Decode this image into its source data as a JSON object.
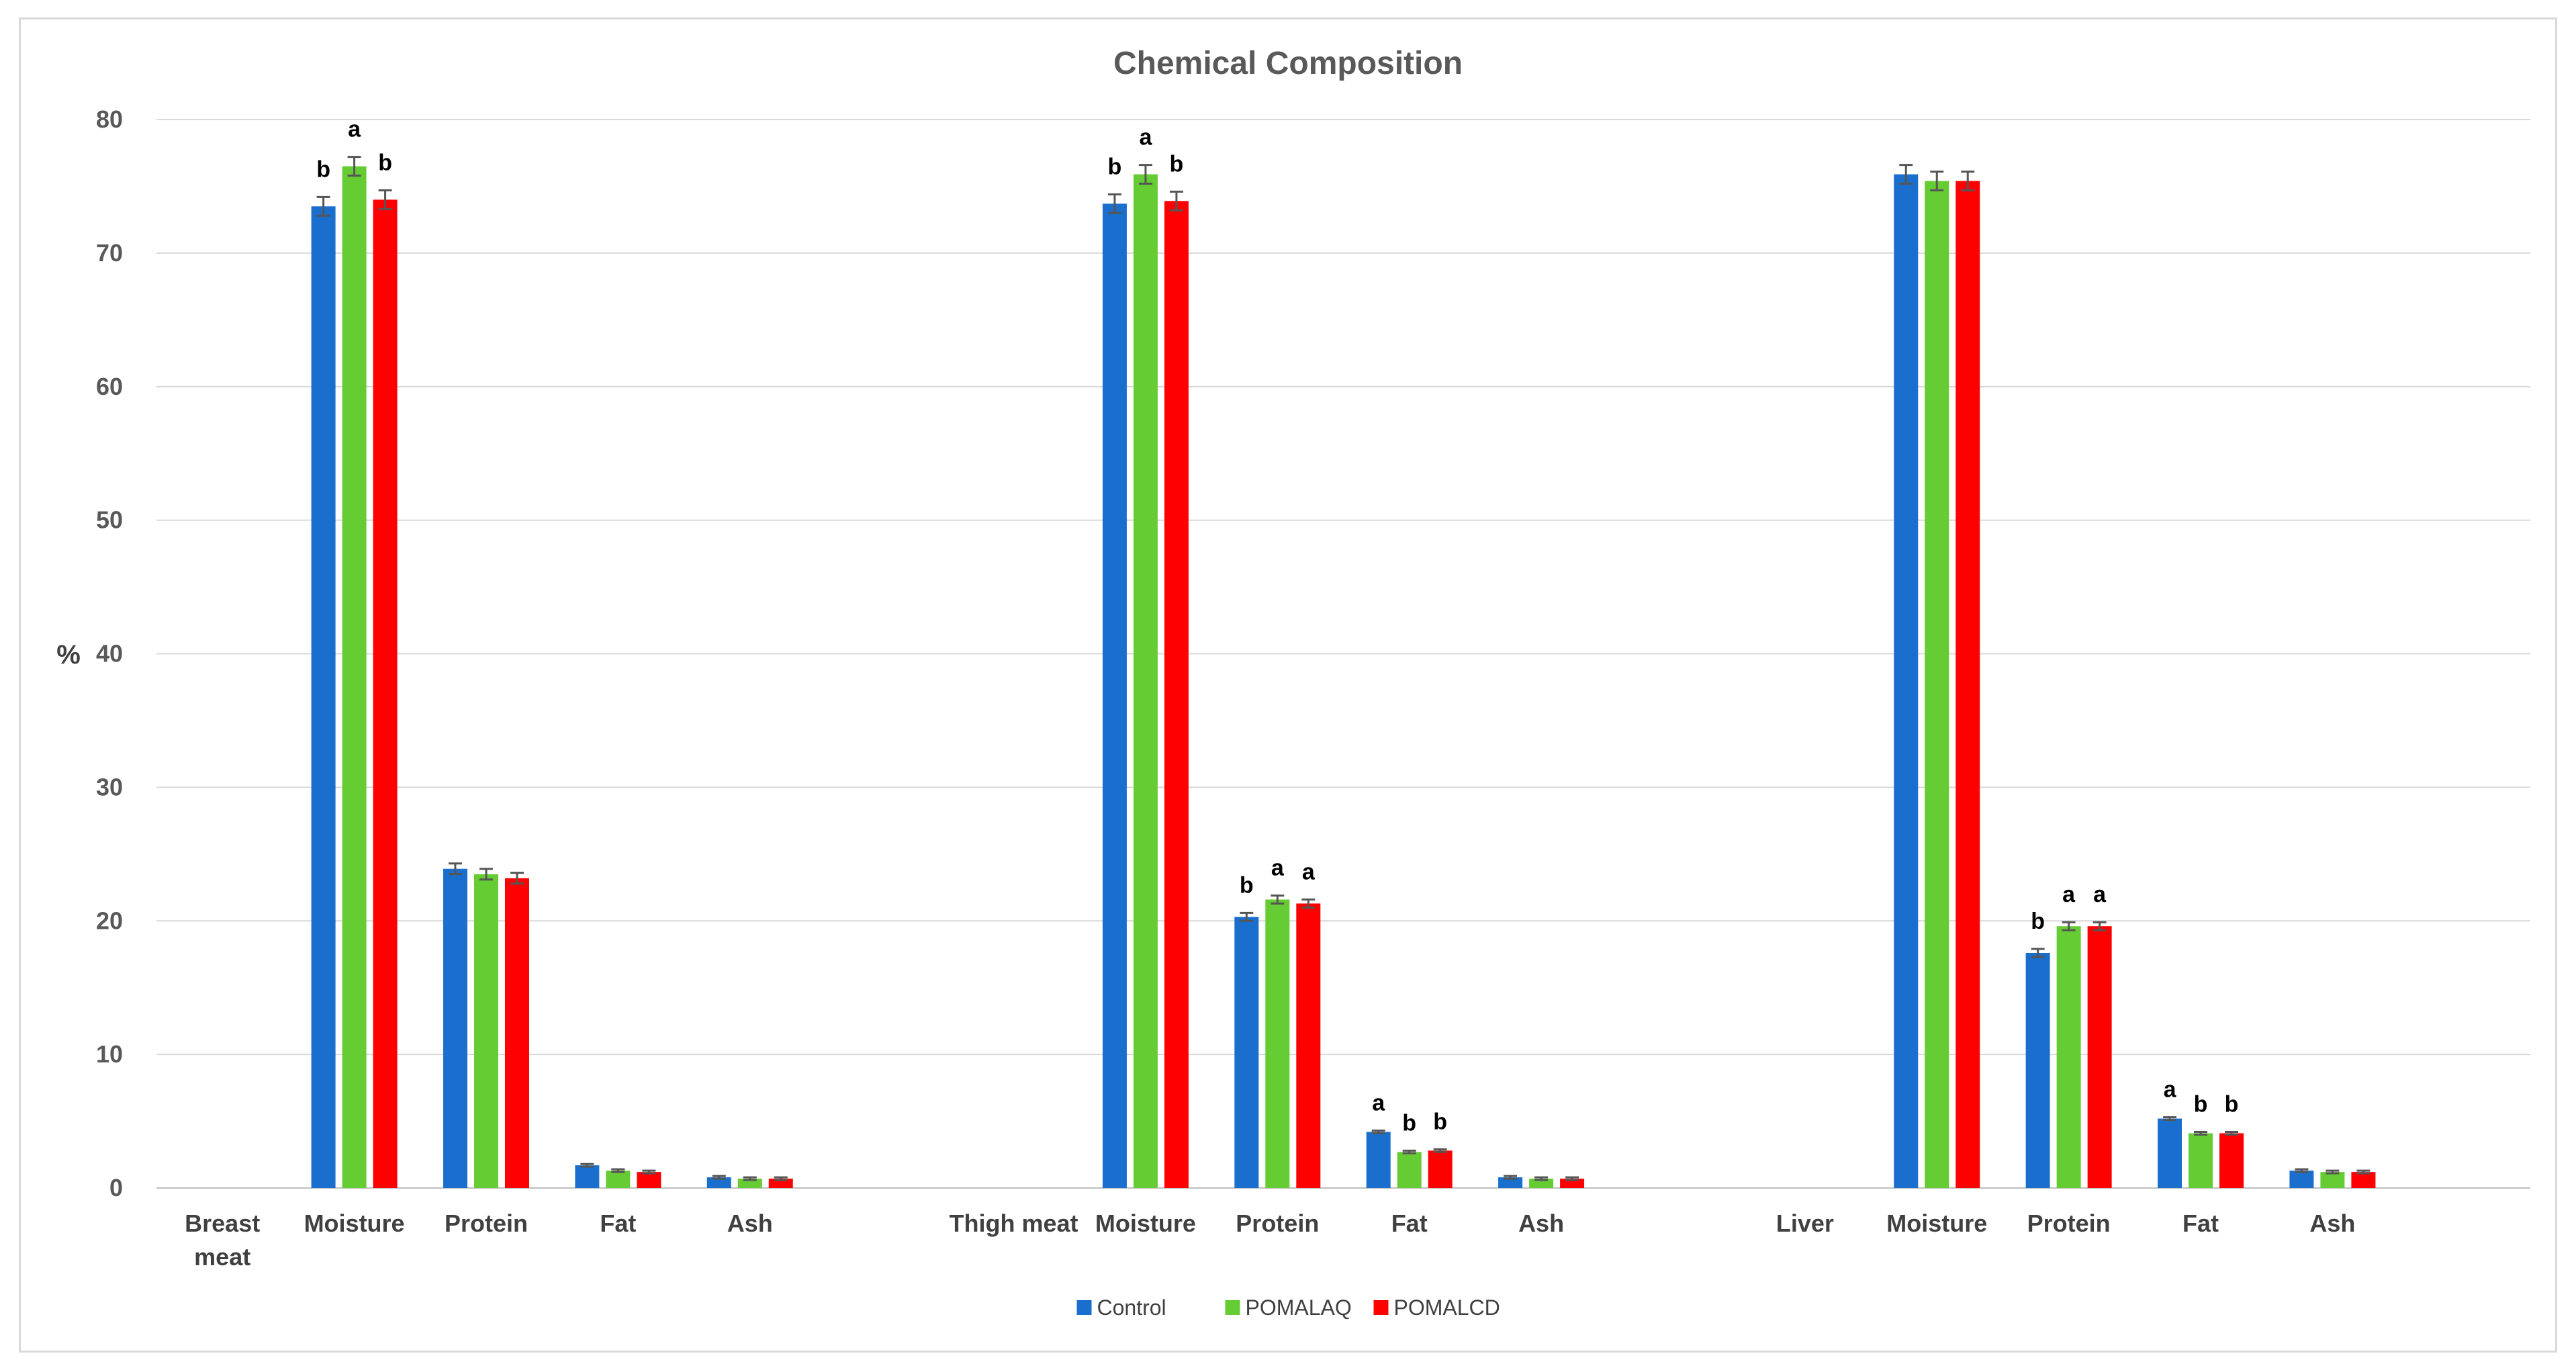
{
  "chart_data": {
    "type": "bar",
    "title": "Chemical Composition",
    "ylabel": "%",
    "xlabel": "",
    "ylim": [
      0,
      80
    ],
    "yticks": [
      "0",
      "10",
      "20",
      "30",
      "40",
      "50",
      "60",
      "70",
      "80"
    ],
    "grid": true,
    "legend_position": "bottom",
    "groups": [
      {
        "label": "Breast meat",
        "label_lines": [
          "Breast",
          "meat"
        ]
      },
      {
        "label": "Thigh meat",
        "label_lines": [
          "Thigh meat"
        ]
      },
      {
        "label": "Liver",
        "label_lines": [
          "Liver"
        ]
      }
    ],
    "categories": [
      {
        "label": "Moisture",
        "group": 0
      },
      {
        "label": "Protein",
        "group": 0
      },
      {
        "label": "Fat",
        "group": 0
      },
      {
        "label": "Ash",
        "group": 0
      },
      {
        "label": "Moisture",
        "group": 1
      },
      {
        "label": "Protein",
        "group": 1
      },
      {
        "label": "Fat",
        "group": 1
      },
      {
        "label": "Ash",
        "group": 1
      },
      {
        "label": "Moisture",
        "group": 2
      },
      {
        "label": "Protein",
        "group": 2
      },
      {
        "label": "Fat",
        "group": 2
      },
      {
        "label": "Ash",
        "group": 2
      }
    ],
    "series": [
      {
        "name": "Control",
        "color": "#1a6fce",
        "values": [
          73.5,
          23.9,
          1.7,
          0.8,
          73.7,
          20.3,
          4.2,
          0.8,
          75.9,
          17.6,
          5.2,
          1.3
        ],
        "errors": [
          0.7,
          0.4,
          0.1,
          0.1,
          0.7,
          0.3,
          0.1,
          0.1,
          0.7,
          0.3,
          0.1,
          0.1
        ],
        "significance": [
          "b",
          "",
          "",
          "",
          "b",
          "b",
          "a",
          "",
          "",
          "b",
          "a",
          ""
        ]
      },
      {
        "name": "POMALAQ",
        "color": "#66cc33",
        "values": [
          76.5,
          23.5,
          1.3,
          0.7,
          75.9,
          21.6,
          2.7,
          0.7,
          75.4,
          19.6,
          4.1,
          1.2
        ],
        "errors": [
          0.7,
          0.4,
          0.1,
          0.1,
          0.7,
          0.3,
          0.1,
          0.1,
          0.7,
          0.3,
          0.1,
          0.1
        ],
        "significance": [
          "a",
          "",
          "",
          "",
          "a",
          "a",
          "b",
          "",
          "",
          "a",
          "b",
          ""
        ]
      },
      {
        "name": "POMALCD",
        "color": "#ff0000",
        "values": [
          74.0,
          23.2,
          1.2,
          0.7,
          73.9,
          21.3,
          2.8,
          0.7,
          75.4,
          19.6,
          4.1,
          1.2
        ],
        "errors": [
          0.7,
          0.4,
          0.1,
          0.1,
          0.7,
          0.3,
          0.1,
          0.1,
          0.7,
          0.3,
          0.1,
          0.1
        ],
        "significance": [
          "b",
          "",
          "",
          "",
          "b",
          "a",
          "b",
          "",
          "",
          "a",
          "b",
          ""
        ]
      }
    ]
  }
}
